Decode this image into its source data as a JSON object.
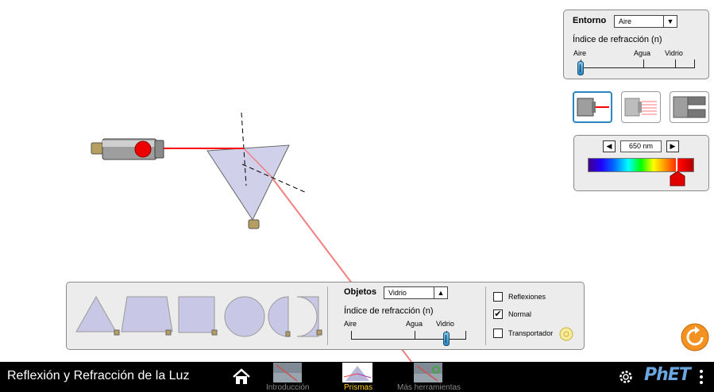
{
  "environment": {
    "title": "Entorno",
    "medium_selected": "Aire",
    "index_label": "Índice de refracción (n)",
    "ticks": [
      "Aire",
      "Agua",
      "Vidrio"
    ],
    "index_level": 0.0
  },
  "wavelength": {
    "value": "650 nm"
  },
  "objects_panel": {
    "title": "Objetos",
    "material_selected": "Vidrio",
    "index_label": "Índice de refracción (n)",
    "ticks": [
      "Aire",
      "Agua",
      "Vidrio"
    ],
    "index_level": 0.85
  },
  "options": {
    "reflections_label": "Reflexiones",
    "reflections_checked": false,
    "normal_label": "Normal",
    "normal_checked": true,
    "protractor_label": "Transportador",
    "protractor_checked": false
  },
  "navbar": {
    "title": "Reflexión y Refracción de la Luz",
    "screens": [
      "Introducción",
      "Prismas",
      "Más herramientas"
    ],
    "active_screen": "Prismas",
    "brand": "PhET"
  },
  "colors": {
    "laser": "#ff0000",
    "refracted_beam": "#f08080",
    "prism_fill": "#c8c8e6",
    "panel_bg": "#ececec",
    "active_tab": "#ffd21e",
    "reset": "#f39221"
  }
}
